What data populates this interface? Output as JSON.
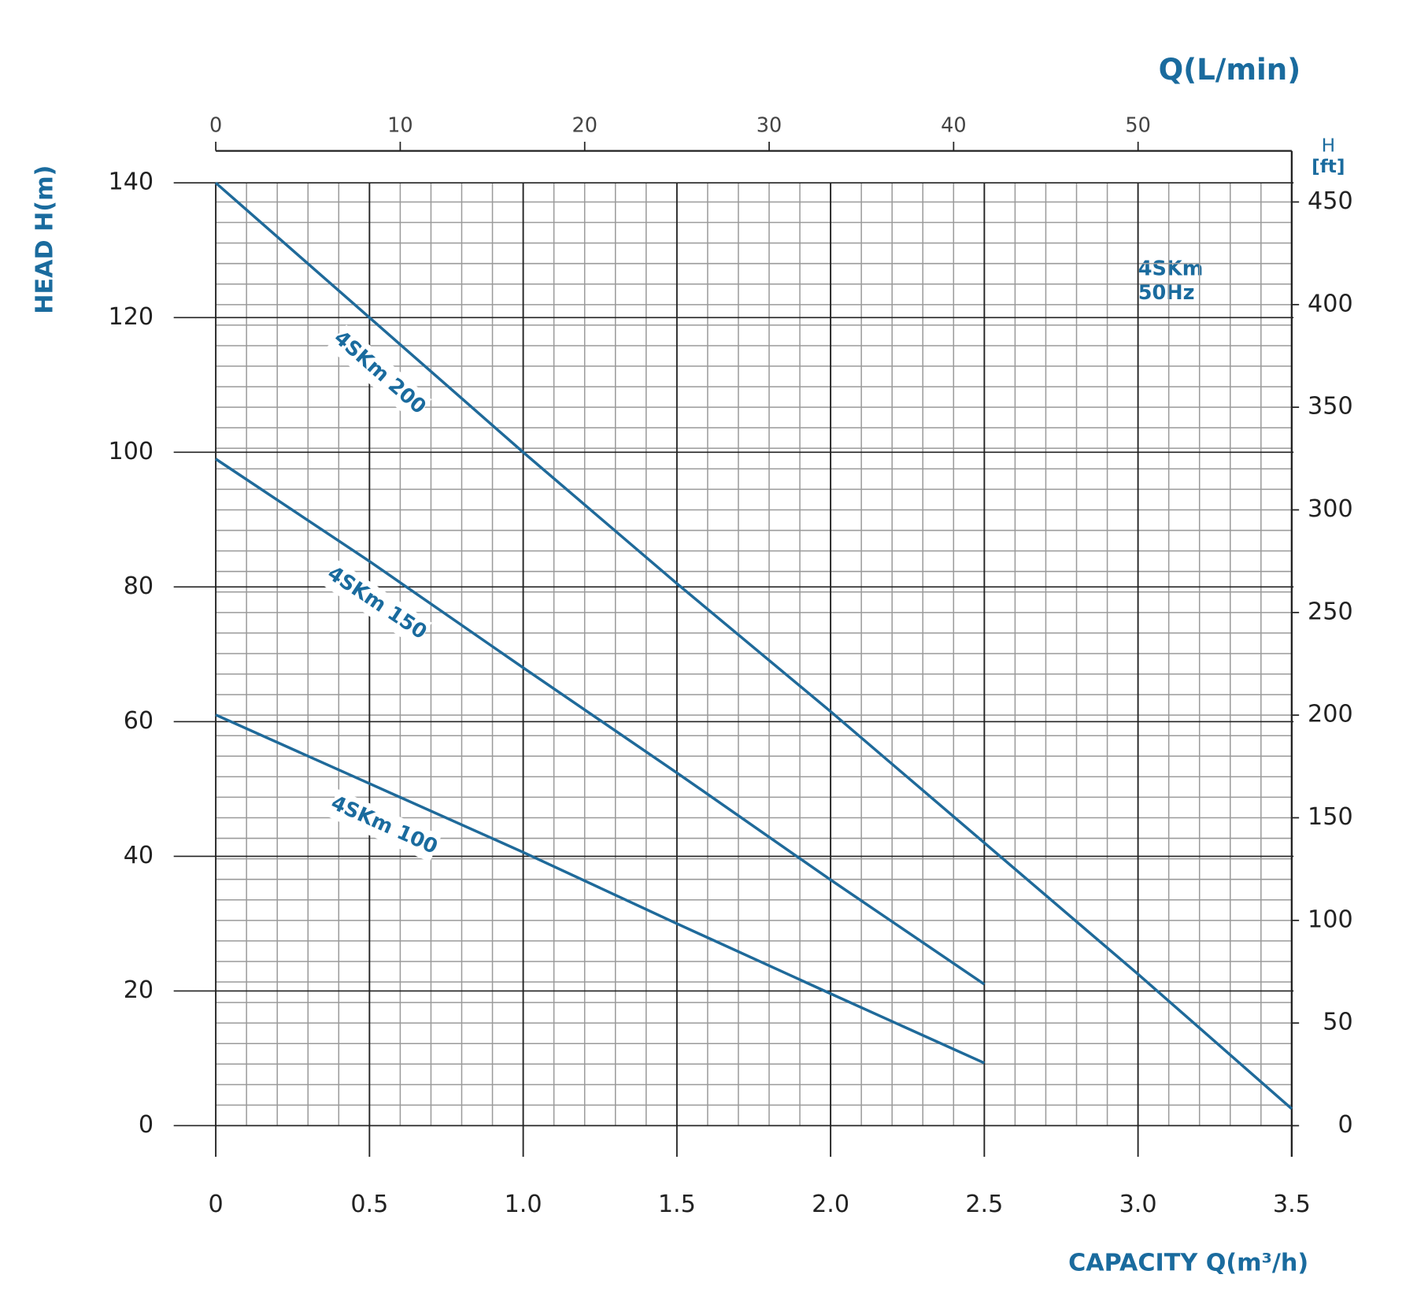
{
  "chart_data": {
    "type": "line",
    "y_label": "HEAD H(m)",
    "x_label": "CAPACITY Q(m³/h)",
    "x2_label": "Q(L/min)",
    "y2_label": [
      "H",
      "[ft]"
    ],
    "annotation": [
      "4SKm",
      "50Hz"
    ],
    "x": [
      0,
      0.5,
      1.0,
      1.5,
      2.0,
      2.5,
      3.0,
      3.5
    ],
    "xlim": [
      0,
      3.5
    ],
    "xticks": [
      0,
      0.5,
      {
        "value": 1,
        "label": "1.0"
      },
      1.5,
      {
        "value": 2,
        "label": "2.0"
      },
      2.5,
      {
        "value": 3,
        "label": "3.0"
      },
      3.5
    ],
    "x2lim": [
      0,
      58.33
    ],
    "x2ticks": [
      0,
      10,
      20,
      30,
      40,
      50
    ],
    "ylim": [
      0,
      140
    ],
    "yticks": [
      0,
      20,
      40,
      60,
      80,
      100,
      120,
      140
    ],
    "y2lim": [
      0,
      459.3
    ],
    "y2ticks": [
      0,
      50,
      100,
      150,
      200,
      250,
      300,
      350,
      400,
      450
    ],
    "grid": true,
    "series": [
      {
        "name": "4SKm 200",
        "color": "#1f6a9a",
        "values": [
          140,
          120,
          100,
          80.5,
          61.5,
          42,
          22.5,
          2.5
        ]
      },
      {
        "name": "4SKm 150",
        "color": "#1f6a9a",
        "values": [
          99,
          83.8,
          68,
          52.4,
          36.5,
          21,
          null,
          null
        ]
      },
      {
        "name": "4SKm 100",
        "color": "#1f6a9a",
        "values": [
          61,
          50.8,
          40.6,
          30,
          19.6,
          9.3,
          null,
          null
        ]
      }
    ]
  }
}
